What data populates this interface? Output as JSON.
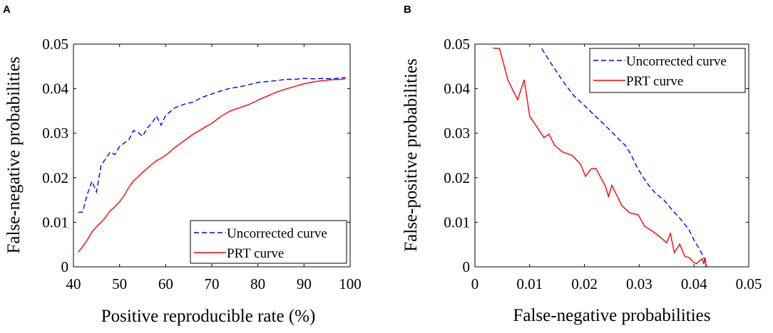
{
  "chart_data": [
    {
      "panel": "A",
      "type": "line",
      "xlabel": "Positive reproducible rate (%)",
      "ylabel": "False-negative probabilities",
      "xlim": [
        40,
        100
      ],
      "ylim": [
        0,
        0.05
      ],
      "xticks": [
        40,
        50,
        60,
        70,
        80,
        90,
        100
      ],
      "yticks": [
        0,
        0.01,
        0.02,
        0.03,
        0.04,
        0.05
      ],
      "xtick_labels": [
        "40",
        "50",
        "60",
        "70",
        "80",
        "90",
        "100"
      ],
      "ytick_labels": [
        "0",
        "0.01",
        "0.02",
        "0.03",
        "0.04",
        "0.05"
      ],
      "legend_position": "bottom-right",
      "series": [
        {
          "name": "Uncorrected curve",
          "color": "#0000ff",
          "dash": "dashed",
          "x": [
            41,
            42,
            43,
            44,
            45,
            46,
            47,
            48,
            49,
            50,
            51,
            52,
            53,
            54,
            55,
            56,
            57,
            58,
            59,
            60,
            62,
            64,
            66,
            68,
            70,
            72,
            74,
            76,
            78,
            80,
            82,
            84,
            86,
            88,
            90,
            92,
            94,
            96,
            98,
            99
          ],
          "y": [
            0.0122,
            0.0123,
            0.0163,
            0.0192,
            0.0168,
            0.0228,
            0.0243,
            0.0258,
            0.0252,
            0.027,
            0.0278,
            0.0285,
            0.0306,
            0.0302,
            0.0293,
            0.0312,
            0.0322,
            0.0339,
            0.0318,
            0.034,
            0.0357,
            0.0365,
            0.037,
            0.0381,
            0.0388,
            0.0395,
            0.0401,
            0.0404,
            0.0409,
            0.0414,
            0.0416,
            0.0418,
            0.0421,
            0.0421,
            0.0423,
            0.0422,
            0.0423,
            0.0422,
            0.0424,
            0.0425
          ]
        },
        {
          "name": "PRT curve",
          "color": "#ff0000",
          "dash": "solid",
          "x": [
            41,
            42,
            43,
            44,
            45,
            46,
            47,
            48,
            49,
            50,
            51,
            52,
            53,
            54,
            55,
            56,
            57,
            58,
            59,
            60,
            62,
            64,
            66,
            68,
            70,
            72,
            74,
            76,
            78,
            80,
            82,
            84,
            86,
            88,
            90,
            92,
            94,
            96,
            98,
            99
          ],
          "y": [
            0.0033,
            0.0045,
            0.006,
            0.0078,
            0.009,
            0.01,
            0.0112,
            0.0126,
            0.0135,
            0.0146,
            0.016,
            0.0178,
            0.0193,
            0.0202,
            0.0212,
            0.0221,
            0.023,
            0.0238,
            0.0244,
            0.025,
            0.0268,
            0.0283,
            0.0298,
            0.031,
            0.0322,
            0.0338,
            0.035,
            0.0357,
            0.0364,
            0.0374,
            0.0383,
            0.0392,
            0.0399,
            0.0405,
            0.0411,
            0.0415,
            0.0418,
            0.042,
            0.0421,
            0.0422
          ]
        }
      ]
    },
    {
      "panel": "B",
      "type": "line",
      "xlabel": "False-negative probabilities",
      "ylabel": "False-positive probabilities",
      "xlim": [
        0,
        0.05
      ],
      "ylim": [
        0,
        0.05
      ],
      "xticks": [
        0,
        0.01,
        0.02,
        0.03,
        0.04,
        0.05
      ],
      "yticks": [
        0,
        0.01,
        0.02,
        0.03,
        0.04,
        0.05
      ],
      "xtick_labels": [
        "0",
        "0.01",
        "0.02",
        "0.03",
        "0.04",
        "0.05"
      ],
      "ytick_labels": [
        "0",
        "0.01",
        "0.02",
        "0.03",
        "0.04",
        "0.05"
      ],
      "legend_position": "top-right",
      "series": [
        {
          "name": "Uncorrected curve",
          "color": "#0000ff",
          "dash": "dashed",
          "x": [
            0.0122,
            0.014,
            0.016,
            0.018,
            0.02,
            0.022,
            0.024,
            0.026,
            0.0275,
            0.0285,
            0.0295,
            0.0305,
            0.0318,
            0.033,
            0.0345,
            0.036,
            0.0375,
            0.039,
            0.04,
            0.041,
            0.0415,
            0.042,
            0.0423
          ],
          "y": [
            0.049,
            0.0455,
            0.0418,
            0.0385,
            0.0362,
            0.0338,
            0.0315,
            0.029,
            0.0272,
            0.0252,
            0.0226,
            0.0205,
            0.0182,
            0.0165,
            0.015,
            0.0128,
            0.0108,
            0.0085,
            0.006,
            0.004,
            0.0028,
            0.0015,
            0.0
          ]
        },
        {
          "name": "PRT curve",
          "color": "#ff0000",
          "dash": "solid",
          "x": [
            0.0033,
            0.0045,
            0.006,
            0.0078,
            0.009,
            0.01,
            0.0112,
            0.0126,
            0.0135,
            0.0146,
            0.016,
            0.0178,
            0.0193,
            0.0202,
            0.0212,
            0.0221,
            0.023,
            0.0238,
            0.0244,
            0.025,
            0.0268,
            0.0283,
            0.0298,
            0.031,
            0.0322,
            0.0338,
            0.035,
            0.0357,
            0.0364,
            0.0374,
            0.0383,
            0.0392,
            0.0399,
            0.0405,
            0.0411,
            0.0415,
            0.0418,
            0.042,
            0.0421,
            0.0422
          ],
          "y": [
            0.0491,
            0.049,
            0.042,
            0.0375,
            0.042,
            0.0338,
            0.0316,
            0.029,
            0.0298,
            0.0272,
            0.0258,
            0.025,
            0.023,
            0.0203,
            0.022,
            0.0221,
            0.02,
            0.0182,
            0.0158,
            0.0183,
            0.0138,
            0.0121,
            0.0117,
            0.0091,
            0.0082,
            0.0067,
            0.0054,
            0.0075,
            0.0032,
            0.0051,
            0.0024,
            0.002,
            0.001,
            0.0007,
            0.0015,
            0.0018,
            0.0006,
            0.002,
            0.0015,
            0.0
          ]
        }
      ]
    }
  ]
}
